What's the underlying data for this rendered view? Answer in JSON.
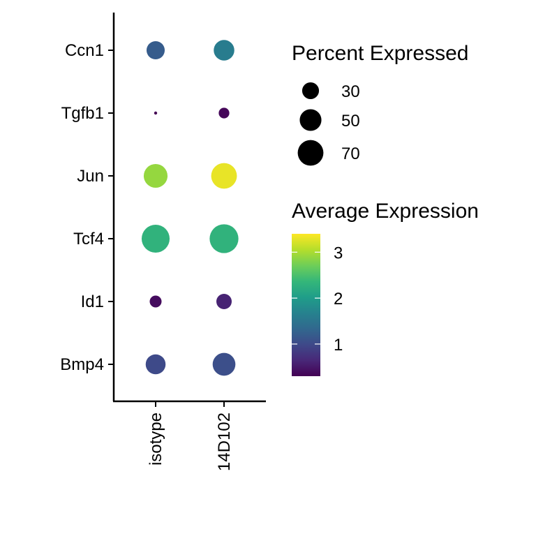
{
  "chart_data": {
    "type": "dotplot",
    "title": "",
    "xlabel": "",
    "ylabel": "",
    "x_categories": [
      "isotype",
      "14D102"
    ],
    "y_categories": [
      "Ccn1",
      "Tgfb1",
      "Jun",
      "Tcf4",
      "Id1",
      "Bmp4"
    ],
    "points": [
      {
        "gene": "Ccn1",
        "group": "isotype",
        "pct_expressed": 35,
        "avg_expression": 1.2
      },
      {
        "gene": "Ccn1",
        "group": "14D102",
        "pct_expressed": 45,
        "avg_expression": 1.6
      },
      {
        "gene": "Tgfb1",
        "group": "isotype",
        "pct_expressed": 1,
        "avg_expression": 0.3
      },
      {
        "gene": "Tgfb1",
        "group": "14D102",
        "pct_expressed": 12,
        "avg_expression": 0.35
      },
      {
        "gene": "Jun",
        "group": "isotype",
        "pct_expressed": 60,
        "avg_expression": 2.9
      },
      {
        "gene": "Jun",
        "group": "14D102",
        "pct_expressed": 70,
        "avg_expression": 3.3
      },
      {
        "gene": "Tcf4",
        "group": "isotype",
        "pct_expressed": 83,
        "avg_expression": 2.3
      },
      {
        "gene": "Tcf4",
        "group": "14D102",
        "pct_expressed": 88,
        "avg_expression": 2.3
      },
      {
        "gene": "Id1",
        "group": "isotype",
        "pct_expressed": 15,
        "avg_expression": 0.4
      },
      {
        "gene": "Id1",
        "group": "14D102",
        "pct_expressed": 25,
        "avg_expression": 0.6
      },
      {
        "gene": "Bmp4",
        "group": "isotype",
        "pct_expressed": 42,
        "avg_expression": 1.0
      },
      {
        "gene": "Bmp4",
        "group": "14D102",
        "pct_expressed": 55,
        "avg_expression": 1.05
      }
    ],
    "size_legend": {
      "title": "Percent Expressed",
      "entries": [
        30,
        50,
        70
      ]
    },
    "color_legend": {
      "title": "Average Expression",
      "min": 0.3,
      "max": 3.4,
      "ticks": [
        1,
        2,
        3
      ],
      "palette": [
        "#440154",
        "#482878",
        "#3e4989",
        "#31688e",
        "#26828e",
        "#1f9e89",
        "#35b779",
        "#6ece58",
        "#b5de2b",
        "#fde725"
      ]
    },
    "grid": false,
    "legend_placement": "right"
  }
}
